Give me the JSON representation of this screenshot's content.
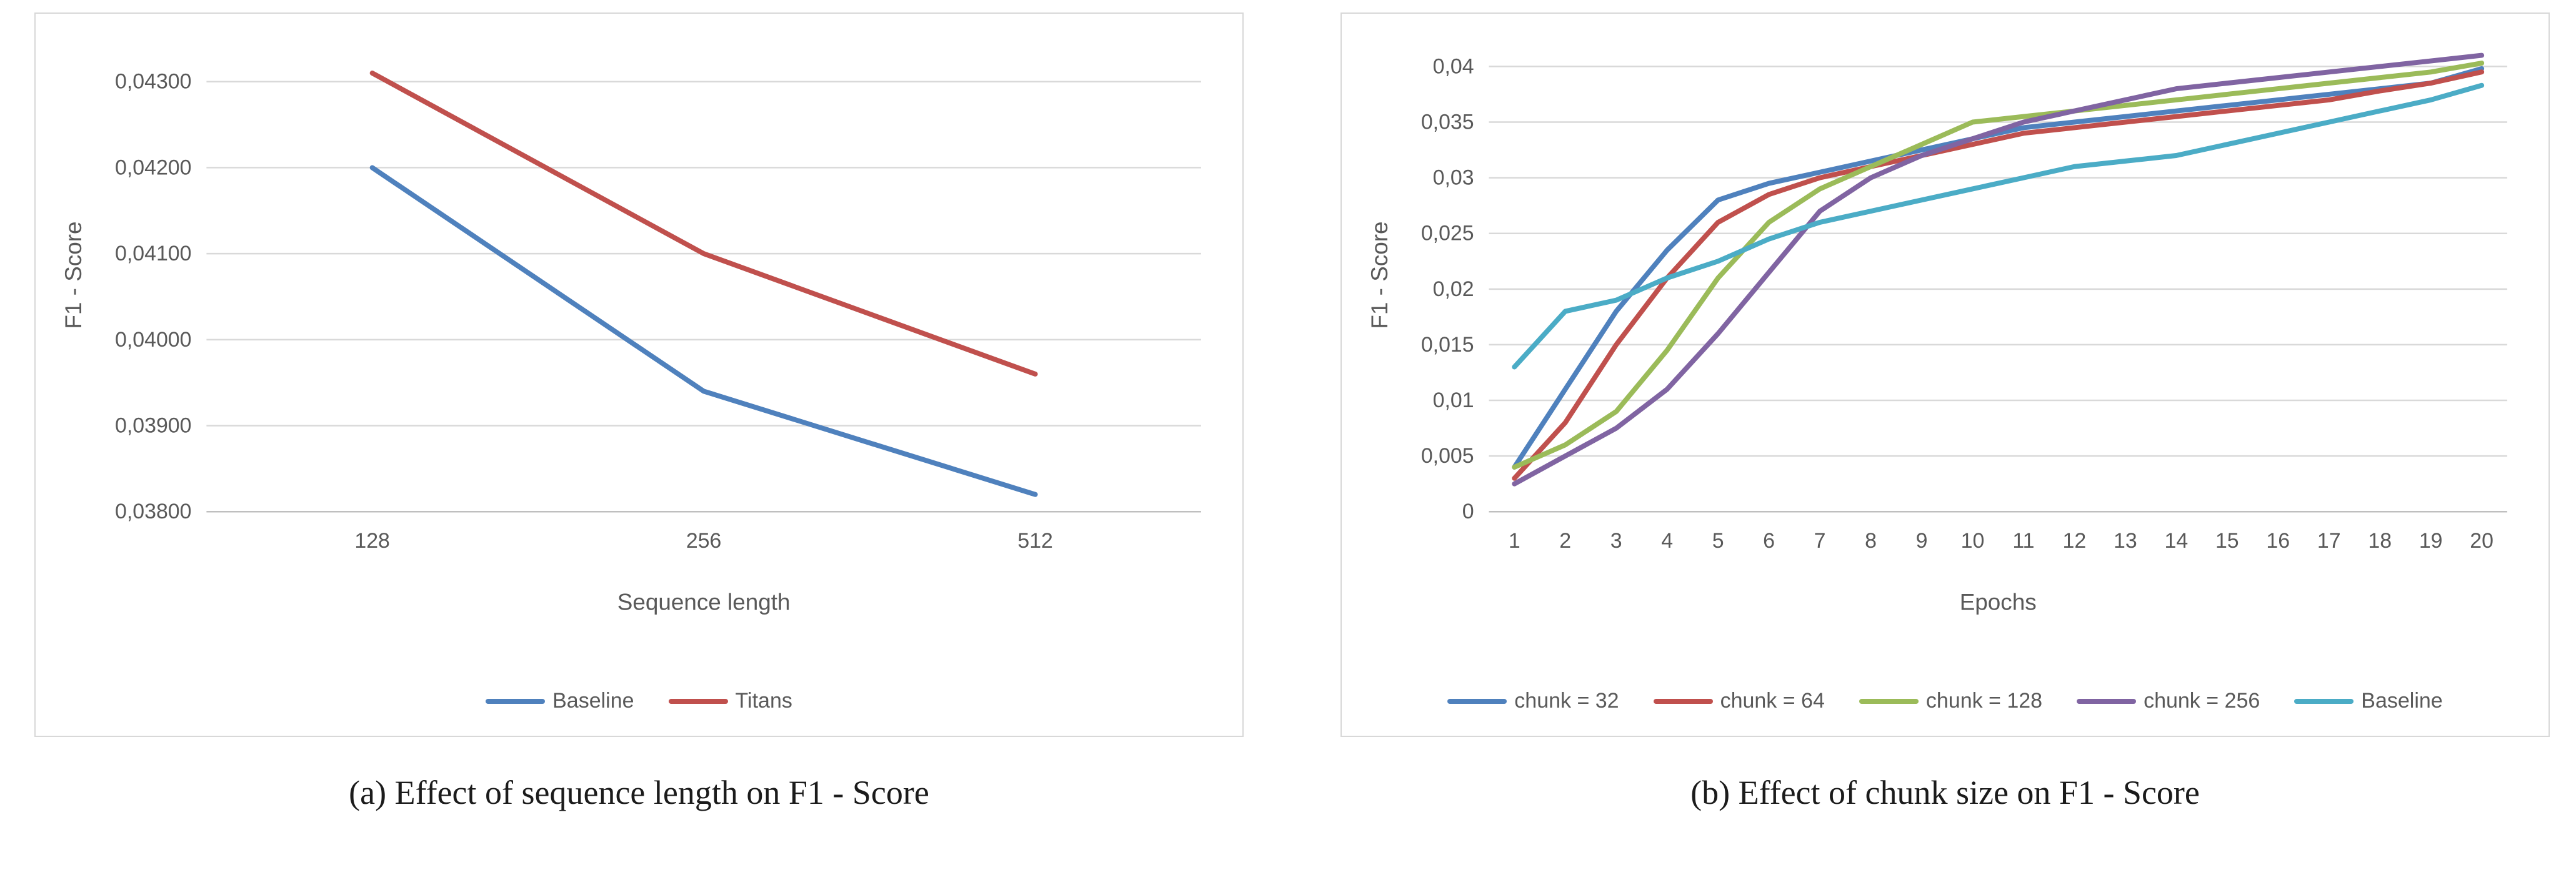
{
  "figure": {
    "captions": {
      "a": "(a) Effect of sequence length on F1 - Score",
      "b": "(b) Effect of chunk size on F1 - Score"
    }
  },
  "style": {
    "gridline_color": "#d9d9d9",
    "axis_line_color": "#bfbfbf",
    "tick_text_color": "#595959"
  },
  "chart_data": [
    {
      "type": "line",
      "title": "",
      "xlabel": "Sequence length",
      "ylabel": "F1 - Score",
      "categories": [
        "128",
        "256",
        "512"
      ],
      "series": [
        {
          "name": "Baseline",
          "color": "#4F81BD",
          "values": [
            0.042,
            0.0394,
            0.0382
          ]
        },
        {
          "name": "Titans",
          "color": "#C0504D",
          "values": [
            0.0431,
            0.041,
            0.0396
          ]
        }
      ],
      "ylim": [
        0.038,
        0.0435
      ],
      "yticks": [
        0.038,
        0.039,
        0.04,
        0.041,
        0.042,
        0.043
      ],
      "ytick_labels": [
        "0,03800",
        "0,03900",
        "0,04000",
        "0,04100",
        "0,04200",
        "0,04300"
      ],
      "grid": true,
      "legend_position": "bottom"
    },
    {
      "type": "line",
      "title": "",
      "xlabel": "Epochs",
      "ylabel": "F1 - Score",
      "categories": [
        "1",
        "2",
        "3",
        "4",
        "5",
        "6",
        "7",
        "8",
        "9",
        "10",
        "11",
        "12",
        "13",
        "14",
        "15",
        "16",
        "17",
        "18",
        "19",
        "20"
      ],
      "series": [
        {
          "name": "chunk = 32",
          "color": "#4F81BD",
          "values": [
            0.004,
            0.011,
            0.018,
            0.0235,
            0.028,
            0.0295,
            0.0305,
            0.0315,
            0.0325,
            0.0335,
            0.0345,
            0.035,
            0.0355,
            0.036,
            0.0365,
            0.037,
            0.0375,
            0.038,
            0.0385,
            0.0398
          ]
        },
        {
          "name": "chunk = 64",
          "color": "#C0504D",
          "values": [
            0.003,
            0.008,
            0.015,
            0.021,
            0.026,
            0.0285,
            0.03,
            0.031,
            0.032,
            0.033,
            0.034,
            0.0345,
            0.035,
            0.0355,
            0.036,
            0.0365,
            0.037,
            0.0378,
            0.0385,
            0.0395
          ]
        },
        {
          "name": "chunk = 128",
          "color": "#9BBB59",
          "values": [
            0.004,
            0.006,
            0.009,
            0.0145,
            0.021,
            0.026,
            0.029,
            0.031,
            0.033,
            0.035,
            0.0355,
            0.036,
            0.0365,
            0.037,
            0.0375,
            0.038,
            0.0385,
            0.039,
            0.0395,
            0.0403
          ]
        },
        {
          "name": "chunk = 256",
          "color": "#8064A2",
          "values": [
            0.0025,
            0.005,
            0.0075,
            0.011,
            0.016,
            0.0215,
            0.027,
            0.03,
            0.032,
            0.0335,
            0.035,
            0.036,
            0.037,
            0.038,
            0.0385,
            0.039,
            0.0395,
            0.04,
            0.0405,
            0.041
          ]
        },
        {
          "name": "Baseline",
          "color": "#4BACC6",
          "values": [
            0.013,
            0.018,
            0.019,
            0.021,
            0.0225,
            0.0245,
            0.026,
            0.027,
            0.028,
            0.029,
            0.03,
            0.031,
            0.0315,
            0.032,
            0.033,
            0.034,
            0.035,
            0.036,
            0.037,
            0.0383
          ]
        }
      ],
      "ylim": [
        0,
        0.0425
      ],
      "yticks": [
        0,
        0.005,
        0.01,
        0.015,
        0.02,
        0.025,
        0.03,
        0.035,
        0.04
      ],
      "ytick_labels": [
        "0",
        "0,005",
        "0,01",
        "0,015",
        "0,02",
        "0,025",
        "0,03",
        "0,035",
        "0,04"
      ],
      "grid": true,
      "legend_position": "bottom"
    }
  ]
}
